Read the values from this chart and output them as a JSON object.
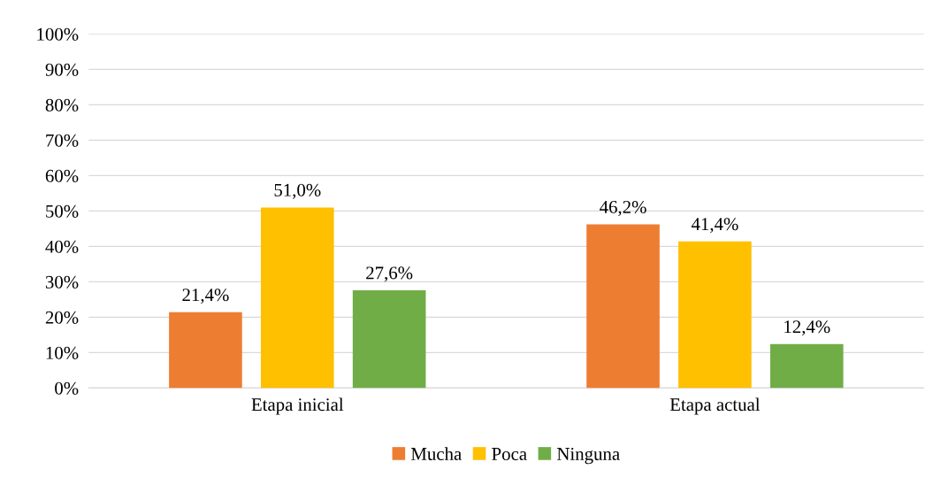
{
  "chart_data": {
    "type": "bar",
    "categories": [
      "Etapa inicial",
      "Etapa actual"
    ],
    "series": [
      {
        "name": "Mucha",
        "color": "#ed7d31",
        "values": [
          21.4,
          46.2
        ],
        "value_labels": [
          "21,4%",
          "46,2%"
        ]
      },
      {
        "name": "Poca",
        "color": "#ffc000",
        "values": [
          51.0,
          41.4
        ],
        "value_labels": [
          "51,0%",
          "41,4%"
        ]
      },
      {
        "name": "Ninguna",
        "color": "#70ad47",
        "values": [
          27.6,
          12.4
        ],
        "value_labels": [
          "27,6%",
          "12,4%"
        ]
      }
    ],
    "ylim": [
      0,
      100
    ],
    "yticks": [
      {
        "value": 0,
        "label": "0%"
      },
      {
        "value": 10,
        "label": "10%"
      },
      {
        "value": 20,
        "label": "20%"
      },
      {
        "value": 30,
        "label": "30%"
      },
      {
        "value": 40,
        "label": "40%"
      },
      {
        "value": 50,
        "label": "50%"
      },
      {
        "value": 60,
        "label": "60%"
      },
      {
        "value": 70,
        "label": "70%"
      },
      {
        "value": 80,
        "label": "80%"
      },
      {
        "value": 90,
        "label": "90%"
      },
      {
        "value": 100,
        "label": "100%"
      }
    ],
    "grid": "y",
    "legend": "bottom"
  }
}
